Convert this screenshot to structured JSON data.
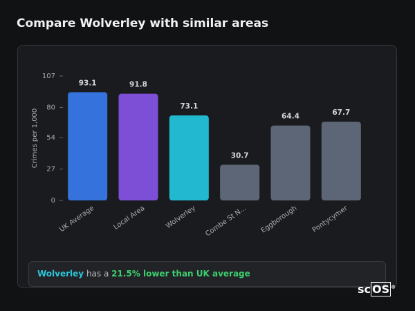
{
  "header": {
    "title": "Compare Wolverley with similar areas"
  },
  "chart_data": {
    "type": "bar",
    "y_label": "Crimes per 1,000",
    "categories": [
      "UK Average",
      "Local Area",
      "Wolverley",
      "Combe St N...",
      "Eggborough",
      "Pontycymer"
    ],
    "values": [
      93.1,
      91.8,
      73.1,
      30.7,
      64.4,
      67.7
    ],
    "colors": [
      "#3572db",
      "#7c4fd6",
      "#21b8d0",
      "#5d6676",
      "#5d6676",
      "#5d6676"
    ],
    "ylim": [
      0,
      107
    ],
    "yticks": [
      0,
      27,
      54,
      80,
      107
    ],
    "grid": false
  },
  "summary": {
    "area": "Wolverley",
    "text": "has a",
    "highlight": "21.5% lower than UK average"
  },
  "logo": {
    "left": "sc",
    "boxed": "OS",
    "mark": "®"
  }
}
